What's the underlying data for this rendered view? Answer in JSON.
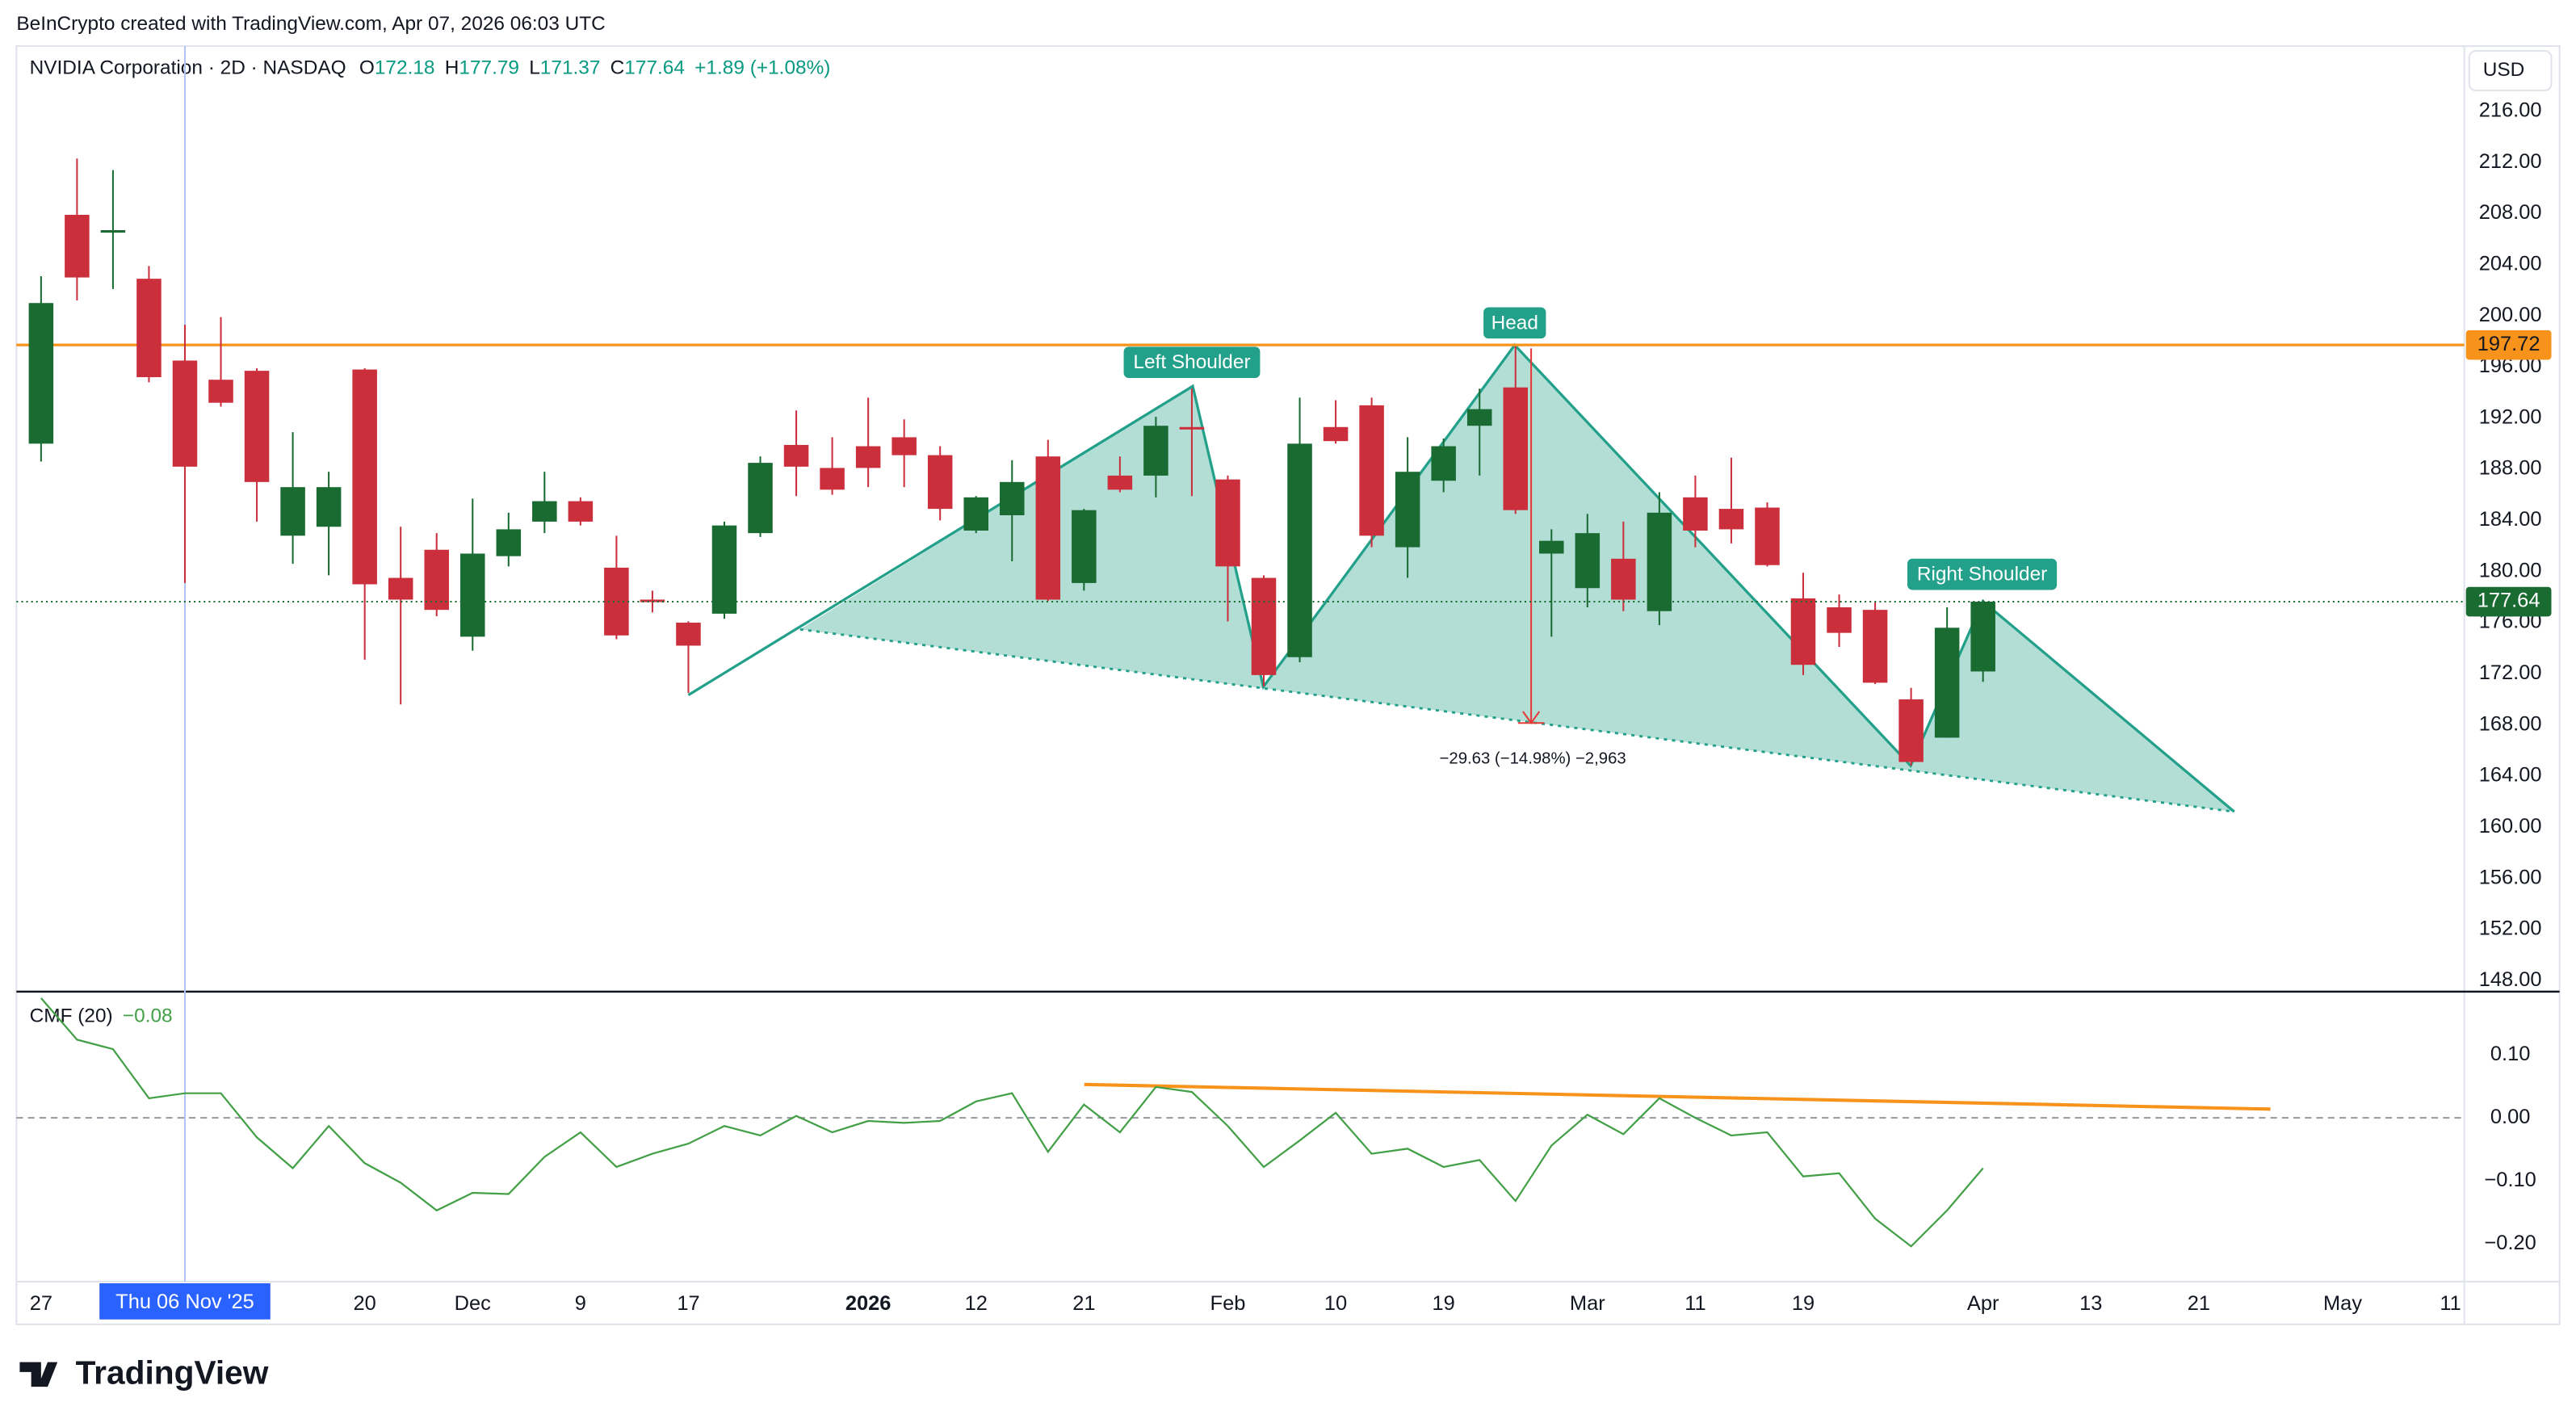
{
  "header": {
    "credit": "BeInCrypto created with TradingView.com, Apr 07, 2026 06:03 UTC",
    "symbol": "NVIDIA Corporation · 2D · NASDAQ",
    "ohlc": [
      {
        "key": "O",
        "value": 172.18
      },
      {
        "key": "H",
        "value": 177.79
      },
      {
        "key": "L",
        "value": 171.37
      },
      {
        "key": "C",
        "value": 177.64
      }
    ],
    "change": "+1.89 (+1.08%)",
    "currency": "USD"
  },
  "footer": {
    "brand": "TradingView"
  },
  "chart_data": [
    {
      "type": "candlestick",
      "categories": [
        "27",
        null,
        null,
        null,
        "Thu 06 Nov '25",
        null,
        null,
        null,
        null,
        "20",
        null,
        null,
        "Dec",
        null,
        null,
        "9",
        null,
        null,
        "17",
        null,
        null,
        null,
        null,
        "2026",
        null,
        null,
        "12",
        null,
        null,
        "21",
        null,
        null,
        null,
        "Feb",
        null,
        null,
        "10",
        null,
        null,
        "19",
        null,
        null,
        null,
        "Mar",
        null,
        null,
        "11",
        null,
        null,
        "19",
        null,
        null,
        null,
        null,
        "Apr",
        null,
        null,
        "13",
        null,
        null,
        "21",
        null,
        null,
        null,
        "May",
        null,
        null,
        "11"
      ],
      "crosshair": {
        "category": 4,
        "color": "#2962ff"
      },
      "open": [
        190.0,
        207.9,
        206.6,
        202.9,
        196.5,
        195.0,
        195.7,
        182.8,
        183.5,
        195.8,
        179.5,
        181.7,
        174.9,
        181.2,
        183.9,
        185.5,
        180.3,
        177.8,
        176.0,
        176.7,
        183.0,
        189.9,
        188.1,
        189.8,
        190.5,
        189.1,
        183.2,
        184.4,
        189.0,
        179.1,
        187.5,
        187.5,
        191.3,
        187.2,
        179.5,
        173.3,
        191.3,
        193.0,
        181.9,
        187.1,
        191.4,
        194.4,
        181.4,
        178.7,
        181.0,
        176.9,
        185.8,
        184.9,
        185.0,
        177.9,
        177.2,
        177.0,
        170.0,
        167.0,
        172.18,
        null,
        null,
        null,
        null,
        null,
        null,
        null,
        null,
        null,
        null,
        null,
        null,
        null
      ],
      "high": [
        203.1,
        212.3,
        211.4,
        203.9,
        199.3,
        199.9,
        195.9,
        190.9,
        187.8,
        195.9,
        183.5,
        183.0,
        185.7,
        184.6,
        187.8,
        185.8,
        182.8,
        178.5,
        176.1,
        183.9,
        189.0,
        192.6,
        190.5,
        193.6,
        191.9,
        189.8,
        185.9,
        188.7,
        190.3,
        184.9,
        189.0,
        192.1,
        194.3,
        187.5,
        179.7,
        193.6,
        193.4,
        193.6,
        190.5,
        190.4,
        194.3,
        197.6,
        183.3,
        184.5,
        183.9,
        186.2,
        187.5,
        188.9,
        185.4,
        179.9,
        178.2,
        177.6,
        170.9,
        177.2,
        177.79,
        null,
        null,
        null,
        null,
        null,
        null,
        null,
        null,
        null,
        null,
        null,
        null,
        null
      ],
      "low": [
        188.6,
        201.2,
        202.1,
        194.8,
        179.1,
        192.9,
        183.9,
        180.6,
        179.7,
        173.1,
        169.6,
        176.5,
        173.8,
        180.4,
        183.0,
        183.6,
        174.7,
        176.8,
        170.5,
        176.3,
        182.7,
        185.9,
        186.0,
        186.6,
        186.6,
        184.0,
        183.0,
        180.8,
        177.7,
        178.5,
        186.2,
        185.8,
        185.9,
        176.1,
        171.0,
        172.9,
        190.0,
        181.9,
        179.5,
        186.2,
        187.5,
        184.5,
        174.9,
        177.2,
        176.9,
        175.8,
        181.9,
        182.2,
        180.4,
        171.9,
        174.1,
        171.2,
        164.8,
        167.0,
        171.37,
        null,
        null,
        null,
        null,
        null,
        null,
        null,
        null,
        null,
        null,
        null,
        null,
        null
      ],
      "close": [
        201.0,
        203.0,
        206.7,
        195.2,
        188.2,
        193.2,
        187.0,
        186.6,
        186.6,
        179.0,
        177.8,
        177.0,
        181.4,
        183.3,
        185.5,
        183.9,
        175.0,
        177.7,
        174.2,
        183.6,
        188.5,
        188.2,
        186.4,
        188.1,
        189.1,
        184.9,
        185.8,
        187.0,
        177.8,
        184.8,
        186.4,
        191.4,
        191.2,
        180.4,
        171.9,
        190.0,
        190.2,
        182.8,
        187.8,
        189.8,
        192.7,
        184.8,
        182.4,
        183.0,
        177.8,
        184.6,
        183.2,
        183.3,
        180.5,
        172.7,
        175.2,
        171.3,
        165.1,
        175.6,
        177.64,
        null,
        null,
        null,
        null,
        null,
        null,
        null,
        null,
        null,
        null,
        null,
        null,
        null
      ],
      "up_color": "#1a6b32",
      "down_color": "#cc2f3c",
      "ylim": [
        147.2,
        221.1
      ],
      "yticks": [
        {
          "value": 148,
          "label": "148.00"
        },
        {
          "value": 152,
          "label": "152.00"
        },
        {
          "value": 156,
          "label": "156.00"
        },
        {
          "value": 160,
          "label": "160.00"
        },
        {
          "value": 164,
          "label": "164.00"
        },
        {
          "value": 168,
          "label": "168.00"
        },
        {
          "value": 172,
          "label": "172.00"
        },
        {
          "value": 176,
          "label": "176.00"
        },
        {
          "value": 180,
          "label": "180.00"
        },
        {
          "value": 184,
          "label": "184.00"
        },
        {
          "value": 188,
          "label": "188.00"
        },
        {
          "value": 192,
          "label": "192.00"
        },
        {
          "value": 196,
          "label": "196.00"
        },
        {
          "value": 200,
          "label": "200.00"
        },
        {
          "value": 204,
          "label": "204.00"
        },
        {
          "value": 208,
          "label": "208.00"
        },
        {
          "value": 212,
          "label": "212.00"
        },
        {
          "value": 216,
          "label": "216.00"
        }
      ],
      "level": {
        "value": 197.72,
        "color": "#f7931a"
      },
      "grid": false,
      "annotations": {
        "left_shoulder": "Left Shoulder",
        "head": "Head",
        "right_shoulder": "Right Shoulder",
        "measure": "−29.63 (−14.98%) −2,963"
      }
    },
    {
      "type": "line",
      "series": [
        {
          "name": "CMF (20)",
          "color": "#43a047",
          "last_label": "−0.08",
          "values": [
            0.19,
            0.124,
            0.109,
            0.031,
            0.039,
            0.039,
            -0.031,
            -0.08,
            -0.013,
            -0.072,
            -0.103,
            -0.147,
            -0.119,
            -0.121,
            -0.062,
            -0.023,
            -0.078,
            -0.057,
            -0.041,
            -0.013,
            -0.028,
            0.003,
            -0.023,
            -0.005,
            -0.008,
            -0.005,
            0.026,
            0.039,
            -0.054,
            0.021,
            -0.023,
            0.049,
            0.041,
            -0.013,
            -0.078,
            -0.036,
            0.008,
            -0.057,
            -0.049,
            -0.078,
            -0.067,
            -0.132,
            -0.044,
            0.005,
            -0.026,
            0.031,
            0.0,
            -0.028,
            -0.023,
            -0.093,
            -0.088,
            -0.16,
            -0.204,
            -0.147,
            -0.08,
            null,
            null,
            null,
            null,
            null,
            null,
            null,
            null,
            null,
            null,
            null,
            null,
            null
          ]
        }
      ],
      "ylim": [
        -0.26,
        0.2
      ],
      "yticks": [
        {
          "value": 0.1,
          "label": "0.10"
        },
        {
          "value": 0,
          "label": "0.00"
        },
        {
          "value": -0.1,
          "label": "−0.10"
        },
        {
          "value": -0.2,
          "label": "−0.20"
        }
      ],
      "zero_line": true
    }
  ]
}
